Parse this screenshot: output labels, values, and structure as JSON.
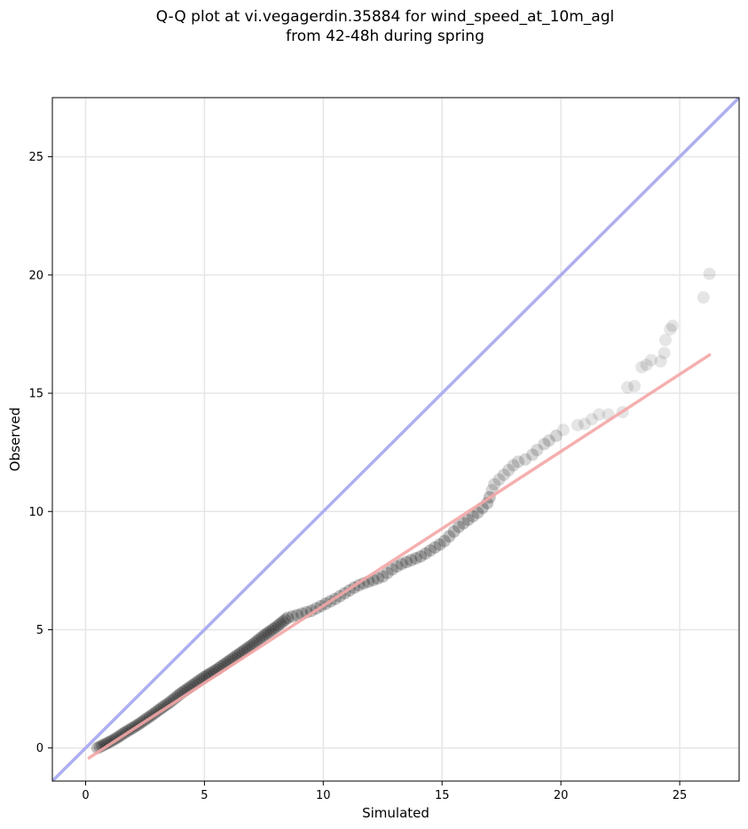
{
  "title_line1": "Q-Q plot at vi.vegagerdin.35884 for wind_speed_at_10m_agl",
  "title_line2": "from 42-48h during spring",
  "chart_data": {
    "type": "scatter",
    "title": "Q-Q plot at vi.vegagerdin.35884 for wind_speed_at_10m_agl\nfrom 42-48h during spring",
    "xlabel": "Simulated",
    "ylabel": "Observed",
    "xlim": [
      -1.4,
      27.5
    ],
    "ylim": [
      -1.4,
      27.5
    ],
    "xticks": [
      0,
      5,
      10,
      15,
      20,
      25
    ],
    "yticks": [
      0,
      5,
      10,
      15,
      20,
      25
    ],
    "grid": true,
    "identity_line": {
      "color": "#aaaaf0",
      "from": [
        -1.4,
        -1.4
      ],
      "to": [
        27.5,
        27.5
      ]
    },
    "fit_line": {
      "color": "#f4a6a6",
      "from": [
        0.1,
        -0.45
      ],
      "to": [
        26.3,
        16.65
      ]
    },
    "point_color": "#000000",
    "points": [
      [
        0.5,
        0.0
      ],
      [
        0.6,
        0.05
      ],
      [
        0.7,
        0.1
      ],
      [
        0.8,
        0.15
      ],
      [
        0.9,
        0.2
      ],
      [
        1.0,
        0.25
      ],
      [
        1.1,
        0.3
      ],
      [
        1.2,
        0.36
      ],
      [
        1.3,
        0.42
      ],
      [
        1.4,
        0.48
      ],
      [
        1.5,
        0.55
      ],
      [
        1.6,
        0.62
      ],
      [
        1.7,
        0.68
      ],
      [
        1.8,
        0.74
      ],
      [
        1.9,
        0.8
      ],
      [
        2.0,
        0.86
      ],
      [
        2.1,
        0.92
      ],
      [
        2.2,
        0.98
      ],
      [
        2.3,
        1.05
      ],
      [
        2.4,
        1.12
      ],
      [
        2.5,
        1.19
      ],
      [
        2.6,
        1.26
      ],
      [
        2.7,
        1.33
      ],
      [
        2.8,
        1.4
      ],
      [
        2.9,
        1.47
      ],
      [
        3.0,
        1.55
      ],
      [
        3.1,
        1.62
      ],
      [
        3.2,
        1.69
      ],
      [
        3.3,
        1.76
      ],
      [
        3.4,
        1.83
      ],
      [
        3.5,
        1.9
      ],
      [
        3.6,
        1.98
      ],
      [
        3.7,
        2.06
      ],
      [
        3.8,
        2.14
      ],
      [
        3.9,
        2.22
      ],
      [
        4.0,
        2.3
      ],
      [
        4.1,
        2.37
      ],
      [
        4.2,
        2.44
      ],
      [
        4.3,
        2.51
      ],
      [
        4.4,
        2.58
      ],
      [
        4.5,
        2.65
      ],
      [
        4.6,
        2.72
      ],
      [
        4.7,
        2.79
      ],
      [
        4.8,
        2.86
      ],
      [
        4.9,
        2.93
      ],
      [
        5.0,
        3.0
      ],
      [
        5.1,
        3.06
      ],
      [
        5.2,
        3.12
      ],
      [
        5.3,
        3.18
      ],
      [
        5.4,
        3.24
      ],
      [
        5.5,
        3.3
      ],
      [
        5.6,
        3.37
      ],
      [
        5.7,
        3.44
      ],
      [
        5.8,
        3.51
      ],
      [
        5.9,
        3.58
      ],
      [
        6.0,
        3.65
      ],
      [
        6.1,
        3.72
      ],
      [
        6.2,
        3.79
      ],
      [
        6.3,
        3.86
      ],
      [
        6.4,
        3.93
      ],
      [
        6.5,
        4.0
      ],
      [
        6.6,
        4.07
      ],
      [
        6.7,
        4.14
      ],
      [
        6.8,
        4.21
      ],
      [
        6.9,
        4.28
      ],
      [
        7.0,
        4.35
      ],
      [
        7.1,
        4.43
      ],
      [
        7.2,
        4.51
      ],
      [
        7.3,
        4.59
      ],
      [
        7.4,
        4.67
      ],
      [
        7.5,
        4.75
      ],
      [
        7.6,
        4.82
      ],
      [
        7.7,
        4.89
      ],
      [
        7.8,
        4.96
      ],
      [
        7.9,
        5.03
      ],
      [
        8.0,
        5.1
      ],
      [
        8.1,
        5.18
      ],
      [
        8.2,
        5.26
      ],
      [
        8.3,
        5.34
      ],
      [
        8.4,
        5.42
      ],
      [
        8.5,
        5.5
      ],
      [
        8.7,
        5.56
      ],
      [
        8.9,
        5.62
      ],
      [
        9.1,
        5.68
      ],
      [
        9.3,
        5.74
      ],
      [
        9.5,
        5.8
      ],
      [
        9.7,
        5.9
      ],
      [
        9.9,
        6.0
      ],
      [
        10.1,
        6.1
      ],
      [
        10.3,
        6.2
      ],
      [
        10.5,
        6.3
      ],
      [
        10.7,
        6.42
      ],
      [
        10.9,
        6.54
      ],
      [
        11.1,
        6.66
      ],
      [
        11.3,
        6.78
      ],
      [
        11.5,
        6.88
      ],
      [
        11.7,
        6.96
      ],
      [
        11.9,
        7.03
      ],
      [
        12.1,
        7.1
      ],
      [
        12.3,
        7.17
      ],
      [
        12.5,
        7.25
      ],
      [
        12.7,
        7.4
      ],
      [
        12.9,
        7.55
      ],
      [
        13.1,
        7.68
      ],
      [
        13.3,
        7.78
      ],
      [
        13.5,
        7.86
      ],
      [
        13.7,
        7.94
      ],
      [
        13.9,
        8.02
      ],
      [
        14.1,
        8.1
      ],
      [
        14.3,
        8.22
      ],
      [
        14.5,
        8.35
      ],
      [
        14.7,
        8.48
      ],
      [
        14.9,
        8.6
      ],
      [
        15.1,
        8.75
      ],
      [
        15.3,
        8.95
      ],
      [
        15.5,
        9.15
      ],
      [
        15.7,
        9.35
      ],
      [
        15.9,
        9.5
      ],
      [
        16.1,
        9.65
      ],
      [
        16.3,
        9.8
      ],
      [
        16.5,
        9.95
      ],
      [
        16.7,
        10.15
      ],
      [
        16.9,
        10.35
      ],
      [
        17.0,
        10.6
      ],
      [
        17.1,
        10.9
      ],
      [
        17.2,
        11.15
      ],
      [
        17.4,
        11.35
      ],
      [
        17.6,
        11.55
      ],
      [
        17.8,
        11.75
      ],
      [
        18.0,
        11.95
      ],
      [
        18.2,
        12.1
      ],
      [
        18.5,
        12.2
      ],
      [
        18.8,
        12.4
      ],
      [
        19.0,
        12.6
      ],
      [
        19.3,
        12.85
      ],
      [
        19.5,
        13.0
      ],
      [
        19.8,
        13.2
      ],
      [
        20.1,
        13.45
      ],
      [
        20.7,
        13.65
      ],
      [
        21.0,
        13.7
      ],
      [
        21.3,
        13.9
      ],
      [
        21.6,
        14.1
      ],
      [
        22.0,
        14.1
      ],
      [
        22.6,
        14.2
      ],
      [
        22.8,
        15.25
      ],
      [
        23.1,
        15.3
      ],
      [
        23.4,
        16.1
      ],
      [
        23.6,
        16.2
      ],
      [
        23.8,
        16.4
      ],
      [
        24.2,
        16.35
      ],
      [
        24.35,
        16.7
      ],
      [
        24.4,
        17.25
      ],
      [
        24.6,
        17.7
      ],
      [
        24.7,
        17.85
      ],
      [
        26.0,
        19.05
      ],
      [
        26.25,
        20.05
      ]
    ]
  }
}
